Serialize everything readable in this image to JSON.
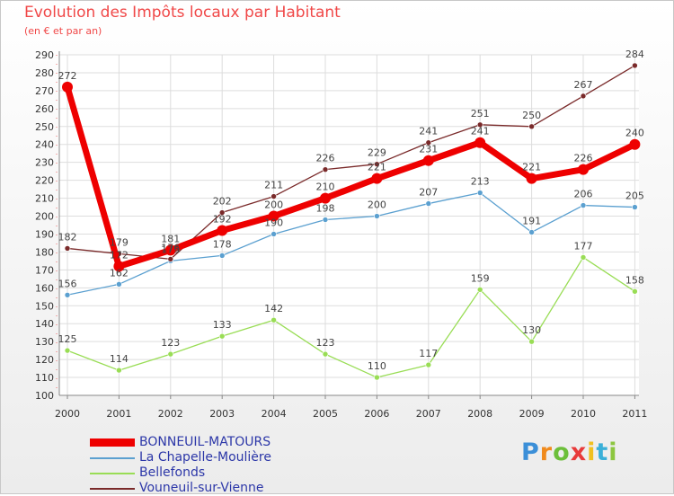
{
  "header": {
    "title": "Evolution des Impôts locaux par Habitant",
    "subtitle": "(en € et par an)"
  },
  "chart_data": {
    "type": "line",
    "title": "Evolution des Impôts locaux par Habitant",
    "subtitle": "(en € et par an)",
    "xlabel": "",
    "ylabel": "",
    "ylim": [
      100,
      290
    ],
    "yticks": [
      100,
      110,
      120,
      130,
      140,
      150,
      160,
      170,
      180,
      190,
      200,
      210,
      220,
      230,
      240,
      250,
      260,
      270,
      280,
      290
    ],
    "grid": true,
    "legend_position": "bottom-left",
    "categories": [
      "2000",
      "2001",
      "2002",
      "2003",
      "2004",
      "2005",
      "2006",
      "2007",
      "2008",
      "2009",
      "2010",
      "2011"
    ],
    "series": [
      {
        "name": "BONNEUIL-MATOURS",
        "color": "#ee0000",
        "values": [
          272,
          172,
          181,
          192,
          200,
          210,
          221,
          231,
          241,
          221,
          226,
          240
        ]
      },
      {
        "name": "La Chapelle-Moulière",
        "color": "#5ba0d0",
        "values": [
          156,
          162,
          175,
          178,
          190,
          198,
          200,
          207,
          213,
          191,
          206,
          205
        ]
      },
      {
        "name": "Bellefonds",
        "color": "#99dd55",
        "values": [
          125,
          114,
          123,
          133,
          142,
          123,
          110,
          117,
          159,
          130,
          177,
          158
        ]
      },
      {
        "name": "Vouneuil-sur-Vienne",
        "color": "#7a2a2a",
        "values": [
          182,
          179,
          176,
          202,
          211,
          226,
          229,
          241,
          251,
          250,
          267,
          284
        ]
      }
    ]
  },
  "brand": {
    "letters": [
      "P",
      "r",
      "o",
      "x",
      "i",
      "t",
      "i"
    ],
    "colors": [
      "#3b8fd8",
      "#f08a1c",
      "#6cbf3a",
      "#e83a3a",
      "#f0c020",
      "#3bb0d8",
      "#8cc63f"
    ]
  }
}
